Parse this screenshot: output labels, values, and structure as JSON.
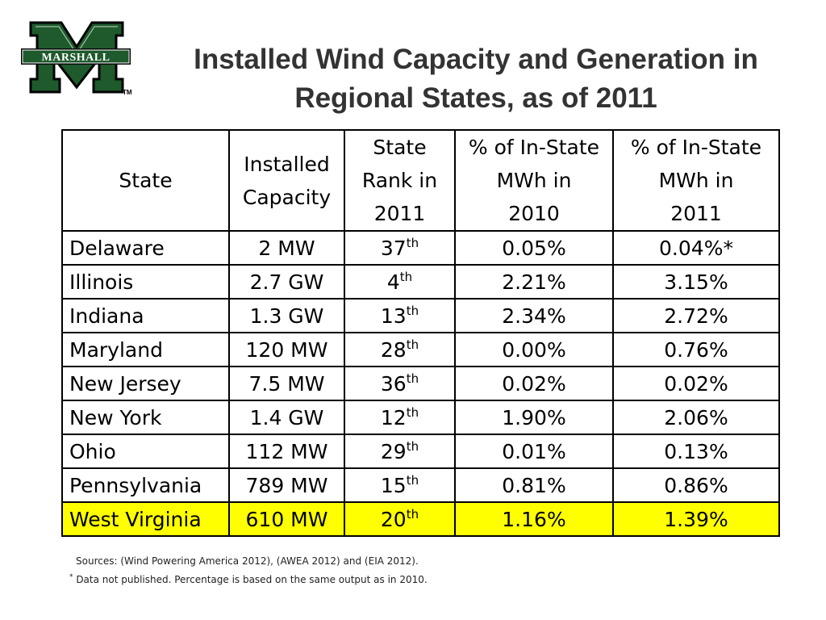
{
  "logo": {
    "text": "MARSHALL",
    "trademark": "TM",
    "color": "#1e5a2c"
  },
  "title": {
    "line1": "Installed Wind Capacity and Generation in",
    "line2": "Regional States, as of 2011"
  },
  "table": {
    "headers": [
      {
        "lines": [
          "State"
        ]
      },
      {
        "lines": [
          "Installed",
          "Capacity"
        ]
      },
      {
        "lines": [
          "State",
          "Rank in",
          "2011"
        ]
      },
      {
        "lines": [
          "% of In-State",
          "MWh in",
          "2010"
        ]
      },
      {
        "lines": [
          "% of In-State",
          "MWh in",
          "2011"
        ]
      }
    ],
    "rows": [
      {
        "state": "Delaware",
        "capacity": "2 MW",
        "rank": "37",
        "rank_suffix": "th",
        "pct_2010": "0.05%",
        "pct_2011": "0.04%*"
      },
      {
        "state": "Illinois",
        "capacity": "2.7 GW",
        "rank": "4",
        "rank_suffix": "th",
        "pct_2010": "2.21%",
        "pct_2011": "3.15%"
      },
      {
        "state": "Indiana",
        "capacity": "1.3 GW",
        "rank": "13",
        "rank_suffix": "th",
        "pct_2010": "2.34%",
        "pct_2011": "2.72%"
      },
      {
        "state": "Maryland",
        "capacity": "120 MW",
        "rank": "28",
        "rank_suffix": "th",
        "pct_2010": "0.00%",
        "pct_2011": "0.76%"
      },
      {
        "state": "New Jersey",
        "capacity": "7.5 MW",
        "rank": "36",
        "rank_suffix": "th",
        "pct_2010": "0.02%",
        "pct_2011": "0.02%"
      },
      {
        "state": "New York",
        "capacity": "1.4 GW",
        "rank": "12",
        "rank_suffix": "th",
        "pct_2010": "1.90%",
        "pct_2011": "2.06%"
      },
      {
        "state": "Ohio",
        "capacity": "112 MW",
        "rank": "29",
        "rank_suffix": "th",
        "pct_2010": "0.01%",
        "pct_2011": "0.13%"
      },
      {
        "state": "Pennsylvania",
        "capacity": "789 MW",
        "rank": "15",
        "rank_suffix": "th",
        "pct_2010": "0.81%",
        "pct_2011": "0.86%"
      },
      {
        "state": "West Virginia",
        "capacity": "610 MW",
        "rank": "20",
        "rank_suffix": "th",
        "pct_2010": "1.16%",
        "pct_2011": "1.39%",
        "highlight": true
      }
    ],
    "highlight_color": "#ffff00"
  },
  "footnotes": {
    "sources": "Sources: (Wind Powering America 2012), (AWEA 2012) and (EIA 2012).",
    "marker": "*",
    "note": " Data not published. Percentage is based on the same output as in 2010."
  }
}
